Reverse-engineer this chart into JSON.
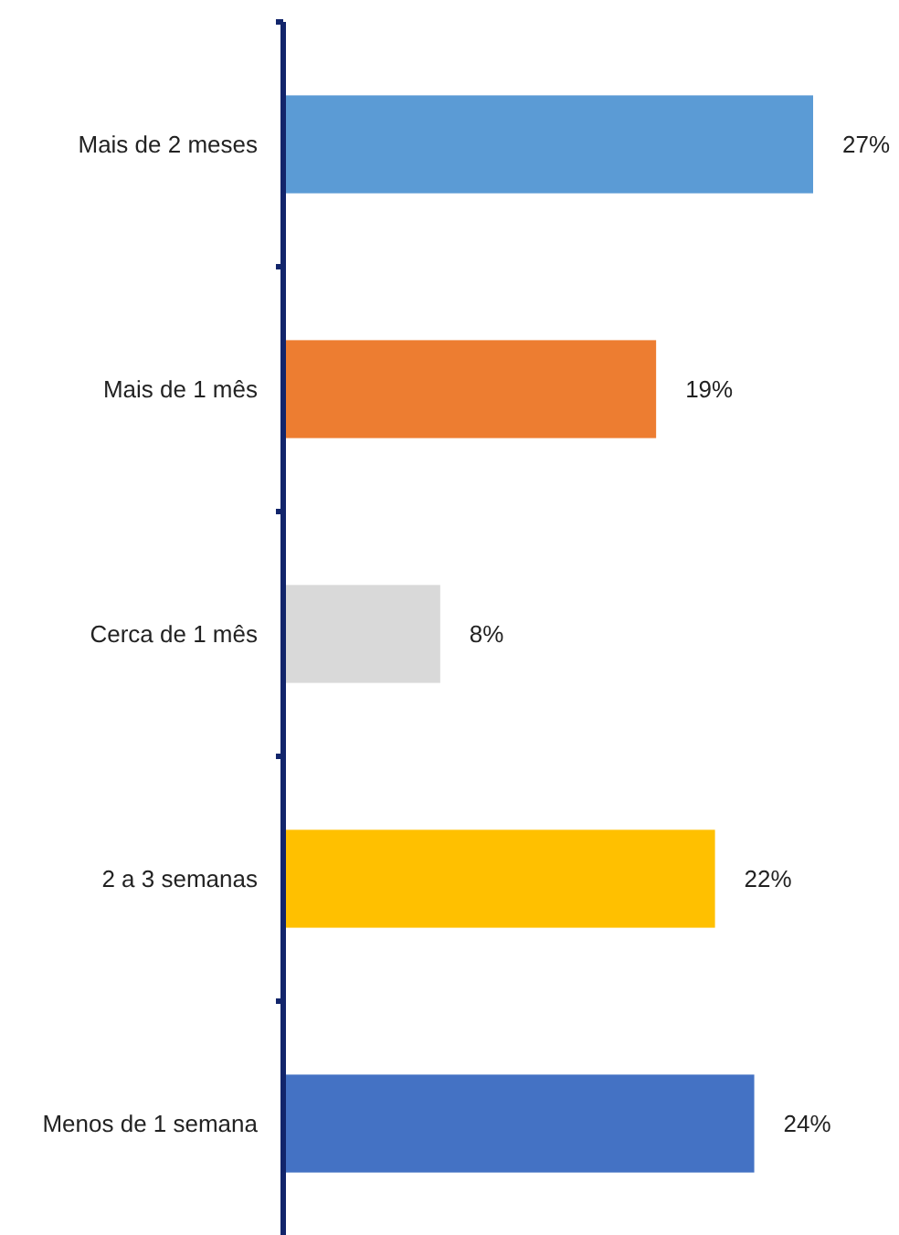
{
  "chart_data": {
    "type": "bar",
    "orientation": "horizontal",
    "categories": [
      "Mais de 2 meses",
      "Mais de 1 mês",
      "Cerca de 1 mês",
      "2 a 3 semanas",
      "Menos de 1 semana"
    ],
    "values": [
      27,
      19,
      8,
      22,
      24
    ],
    "colors": [
      "#5b9bd5",
      "#ed7d31",
      "#d9d9d9",
      "#ffc000",
      "#4472c4"
    ],
    "value_labels": [
      "27%",
      "19%",
      "8%",
      "22%",
      "24%"
    ]
  }
}
